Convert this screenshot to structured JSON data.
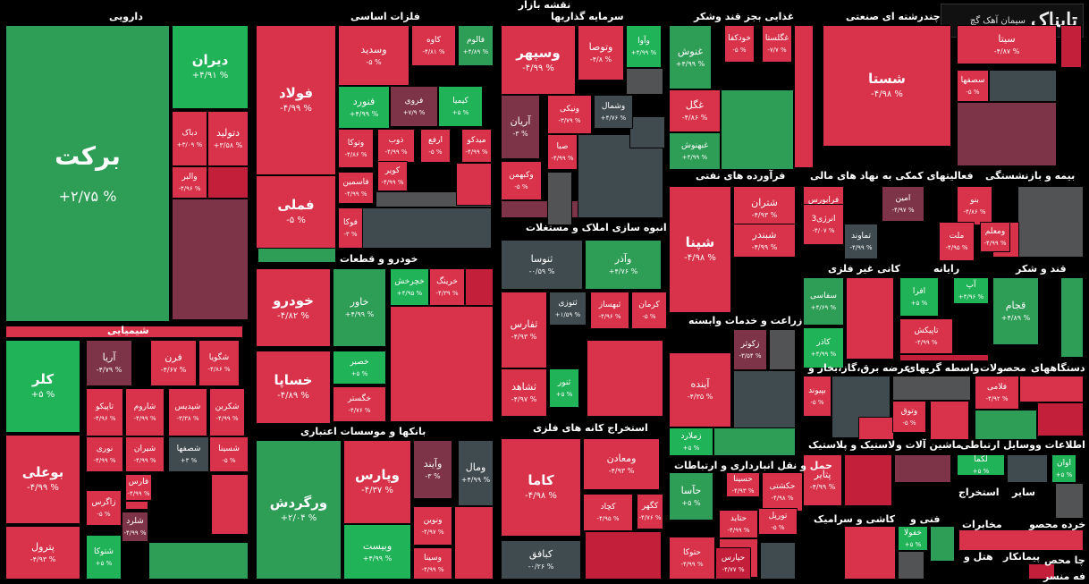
{
  "title": "نقشه بازار",
  "logo": {
    "brand": "تابناک",
    "label": "سیمان آهک گچ"
  },
  "colors": {
    "dg": "#2e9e57",
    "lg": "#21b358",
    "g": "#0fa955",
    "r": "#d8334a",
    "lr": "#e24d61",
    "dr": "#c31f3a",
    "m": "#7d3448",
    "gr": "#3f4b4e",
    "dgr": "#525355"
  },
  "sectors": [
    {
      "label": "دارویی"
    },
    {
      "label": "فلزات اساسی"
    },
    {
      "label": "سرمایه گذاریها"
    },
    {
      "label": "غذایی بجز قند وشکر"
    },
    {
      "label": "چندرشته ای صنعتی"
    },
    {
      "label": "شیمیایی"
    },
    {
      "label": "خودرو و قطعات"
    },
    {
      "label": "انبوه سازی املاک و مستغلات"
    },
    {
      "label": "فرآورده های نفتی"
    },
    {
      "label": "فعالیتهای کمکی به نهاد های مالی"
    },
    {
      "label": "بیمه و بازنشستگی"
    },
    {
      "label": "کانی غیر فلزی"
    },
    {
      "label": "رایانه"
    },
    {
      "label": "قند و شکر"
    },
    {
      "label": "زراعت و خدمات وابسته"
    },
    {
      "label": "بانکها و موسسات اعتباری"
    },
    {
      "label": "استخراج کانه های فلزی"
    },
    {
      "label": "عرضه برق،گاز،بخار و"
    },
    {
      "label": "واسطه گریهای"
    },
    {
      "label": "محصولات"
    },
    {
      "label": "دستگاههای"
    },
    {
      "label": "حمل و نقل انبارداری و ارتباطات"
    },
    {
      "label": "لاستیک و پلاستیک"
    },
    {
      "label": "ماشین آلات و"
    },
    {
      "label": "وسایل ارتباطی"
    },
    {
      "label": "اطلاعات و"
    },
    {
      "label": "کاشی و سرامیک"
    },
    {
      "label": "فنی و"
    },
    {
      "label": "استخراج"
    },
    {
      "label": "سایر"
    },
    {
      "label": "خرده محصو"
    },
    {
      "label": "مخابرات"
    },
    {
      "label": "هتل و"
    },
    {
      "label": "پیمانکار"
    },
    {
      "label": "چا محص"
    },
    {
      "label": "فه منسر"
    }
  ],
  "tiles": [
    {
      "name": "برکت",
      "pct": "+۲/۷۵ %",
      "c": "dg"
    },
    {
      "name": "دیران",
      "pct": "+۴/۹۱ %",
      "c": "lg"
    },
    {
      "name": "دتولید",
      "pct": "+۳/۵۸ %",
      "c": "r"
    },
    {
      "name": "دباک",
      "pct": "+۳/۰۹ %",
      "c": "r"
    },
    {
      "name": "والبر",
      "pct": "-۴/۹۶ %",
      "c": "r"
    },
    {
      "name": "فولاد",
      "pct": "-۴/۹۹ %",
      "c": "r"
    },
    {
      "name": "فملی",
      "pct": "-۵ %",
      "c": "r"
    },
    {
      "name": "وسدید",
      "pct": "-۵ %",
      "c": "r"
    },
    {
      "name": "کاوه",
      "pct": "-۴/۸۱ %",
      "c": "r"
    },
    {
      "name": "فالوم",
      "pct": "+۴/۸۹ %",
      "c": "dg"
    },
    {
      "name": "فنورد",
      "pct": "+۴/۹۹ %",
      "c": "lg"
    },
    {
      "name": "فروی",
      "pct": "+۷/۹ %",
      "c": "m"
    },
    {
      "name": "کیمیا",
      "pct": "+۵ %",
      "c": "lg"
    },
    {
      "name": "وتوکا",
      "pct": "-۴/۸۶ %",
      "c": "r"
    },
    {
      "name": "ذوب",
      "pct": "-۴/۹۹ %",
      "c": "r"
    },
    {
      "name": "ارفع",
      "pct": "-۵ %",
      "c": "r"
    },
    {
      "name": "میدکو",
      "pct": "-۴/۹۹ %",
      "c": "r"
    },
    {
      "name": "فاسمین",
      "pct": "-۴/۹۹ %",
      "c": "r"
    },
    {
      "name": "کویر",
      "pct": "-۴/۹۹ %",
      "c": "r"
    },
    {
      "name": "فوکا",
      "pct": "-۳ %",
      "c": "r"
    },
    {
      "name": "وسپهر",
      "pct": "-۴/۹۹ %",
      "c": "r"
    },
    {
      "name": "وتوصا",
      "pct": "-۴/۸ %",
      "c": "r"
    },
    {
      "name": "وآوا",
      "pct": "+۴/۹۹ %",
      "c": "lg"
    },
    {
      "name": "ونیکی",
      "pct": "-۳/۷۹ %",
      "c": "r"
    },
    {
      "name": "وشمال",
      "pct": "+۴/۷۶ %",
      "c": "gr"
    },
    {
      "name": "آریان",
      "pct": "-۳ %",
      "c": "m"
    },
    {
      "name": "صبا",
      "pct": "-۴/۹۹ %",
      "c": "r"
    },
    {
      "name": "وکبهمن",
      "pct": "-۵ %",
      "c": "r"
    },
    {
      "name": "غنوش",
      "pct": "+۴/۹۹ %",
      "c": "dg"
    },
    {
      "name": "خودکفا",
      "pct": "-۵ %",
      "c": "r"
    },
    {
      "name": "غگلستا",
      "pct": "-۷/۷ %",
      "c": "r"
    },
    {
      "name": "غگل",
      "pct": "-۴/۸۶ %",
      "c": "r"
    },
    {
      "name": "غبهنوش",
      "pct": "+۴/۹۹ %",
      "c": "dg"
    },
    {
      "name": "شستا",
      "pct": "-۴/۹۸ %",
      "c": "r"
    },
    {
      "name": "سیتا",
      "pct": "-۴/۸۷ %",
      "c": "r"
    },
    {
      "name": "سصفها",
      "pct": "-۵ %",
      "c": "r"
    },
    {
      "name": "کلر",
      "pct": "+۵ %",
      "c": "lg"
    },
    {
      "name": "آریا",
      "pct": "-۴/۷۹ %",
      "c": "m"
    },
    {
      "name": "فرن",
      "pct": "-۴/۶۷ %",
      "c": "r"
    },
    {
      "name": "شگویا",
      "pct": "-۴/۸۶ %",
      "c": "r"
    },
    {
      "name": "تاپیکو",
      "pct": "-۴/۹۶ %",
      "c": "r"
    },
    {
      "name": "شاروم",
      "pct": "-۴/۹۹ %",
      "c": "r"
    },
    {
      "name": "شپدیس",
      "pct": "-۳/۳۸ %",
      "c": "r"
    },
    {
      "name": "شکربن",
      "pct": "-۴/۹۹ %",
      "c": "r"
    },
    {
      "name": "بوعلی",
      "pct": "-۴/۹۹ %",
      "c": "r"
    },
    {
      "name": "نوری",
      "pct": "-۴/۹۹ %",
      "c": "r"
    },
    {
      "name": "شیران",
      "pct": "-۴/۹۹ %",
      "c": "r"
    },
    {
      "name": "شصفها",
      "pct": "+۳ %",
      "c": "gr"
    },
    {
      "name": "شسینا",
      "pct": "-۵ %",
      "c": "r"
    },
    {
      "name": "زاگرس",
      "pct": "-۵ %",
      "c": "r"
    },
    {
      "name": "فارس",
      "pct": "-۴/۹۹ %",
      "c": "r"
    },
    {
      "name": "شلرد",
      "pct": "-۴/۹۹ %",
      "c": "m"
    },
    {
      "name": "پترول",
      "pct": "-۴/۹۳ %",
      "c": "r"
    },
    {
      "name": "شتوکا",
      "pct": "+۵ %",
      "c": "lg"
    },
    {
      "name": "خودرو",
      "pct": "-۴/۸۲ %",
      "c": "r"
    },
    {
      "name": "خاور",
      "pct": "+۴/۹۹ %",
      "c": "dg"
    },
    {
      "name": "خچرخش",
      "pct": "+۴/۹۵ %",
      "c": "lg"
    },
    {
      "name": "خرینگ",
      "pct": "-۴/۳۹ %",
      "c": "r"
    },
    {
      "name": "خساپا",
      "pct": "-۴/۸۹ %",
      "c": "r"
    },
    {
      "name": "خصیر",
      "pct": "+۵ %",
      "c": "lg"
    },
    {
      "name": "خگستر",
      "pct": "-۴/۷۶ %",
      "c": "r"
    },
    {
      "name": "ثنوسا",
      "pct": "-۰/۵۹ %",
      "c": "gr"
    },
    {
      "name": "وآذر",
      "pct": "+۴/۷۶ %",
      "c": "dg"
    },
    {
      "name": "ثفارس",
      "pct": "-۴/۹۳ %",
      "c": "r"
    },
    {
      "name": "ثتوزی",
      "pct": "+۱/۵۹ %",
      "c": "gr"
    },
    {
      "name": "ثبهساز",
      "pct": "-۴/۹۶ %",
      "c": "r"
    },
    {
      "name": "کرمان",
      "pct": "-۵ %",
      "c": "r"
    },
    {
      "name": "ثشاهد",
      "pct": "-۴/۹۷ %",
      "c": "r"
    },
    {
      "name": "ثنور",
      "pct": "+۵ %",
      "c": "lg"
    },
    {
      "name": "شپنا",
      "pct": "-۴/۹۸ %",
      "c": "r"
    },
    {
      "name": "شتران",
      "pct": "-۴/۹۳ %",
      "c": "r"
    },
    {
      "name": "شبندر",
      "pct": "-۴/۹۹ %",
      "c": "r"
    },
    {
      "name": "فرابورس",
      "pct": "-۵ %",
      "c": "r"
    },
    {
      "name": "امین",
      "pct": "-۴/۹۷ %",
      "c": "m"
    },
    {
      "name": "انرژی3",
      "pct": "-۴/۰۷ %",
      "c": "r"
    },
    {
      "name": "تماوند",
      "pct": "-۴/۹۹ %",
      "c": "gr"
    },
    {
      "name": "بنو",
      "pct": "-۴/۸۶ %",
      "c": "r"
    },
    {
      "name": "ملت",
      "pct": "-۴/۹۵ %",
      "c": "r"
    },
    {
      "name": "ومعلم",
      "pct": "-۴/۹۹ %",
      "c": "r"
    },
    {
      "name": "سفاسی",
      "pct": "+۴/۶۹ %",
      "c": "dg"
    },
    {
      "name": "کاذر",
      "pct": "+۴/۹۹ %",
      "c": "lg"
    },
    {
      "name": "افرا",
      "pct": "+۵ %",
      "c": "lg"
    },
    {
      "name": "تاپیکش",
      "pct": "-۴/۹۹ %",
      "c": "r"
    },
    {
      "name": "آپ",
      "pct": "+۴/۹۶ %",
      "c": "lg"
    },
    {
      "name": "قجام",
      "pct": "+۴/۸۹ %",
      "c": "dg"
    },
    {
      "name": "زکوثر",
      "pct": "-۳/۵۴ %",
      "c": "m"
    },
    {
      "name": "آینده",
      "pct": "-۴/۳۵ %",
      "c": "r"
    },
    {
      "name": "زملارد",
      "pct": "+۵ %",
      "c": "lg"
    },
    {
      "name": "ورگردش",
      "pct": "+۲/۰۴ %",
      "c": "dg"
    },
    {
      "name": "وپارس",
      "pct": "-۴/۳۷ %",
      "c": "r"
    },
    {
      "name": "وآیند",
      "pct": "-۳ %",
      "c": "m"
    },
    {
      "name": "ومال",
      "pct": "+۴/۹۹ %",
      "c": "gr"
    },
    {
      "name": "وبیست",
      "pct": "+۴/۹۹ %",
      "c": "lg"
    },
    {
      "name": "ونوین",
      "pct": "-۴/۹۷ %",
      "c": "r"
    },
    {
      "name": "وسینا",
      "pct": "-۴/۹۹ %",
      "c": "r"
    },
    {
      "name": "کاما",
      "pct": "-۴/۹۸ %",
      "c": "r"
    },
    {
      "name": "ومعادن",
      "pct": "-۴/۹۳ %",
      "c": "r"
    },
    {
      "name": "کچاد",
      "pct": "-۴/۹۵ %",
      "c": "r"
    },
    {
      "name": "کگهر",
      "pct": "-۴/۷۶ %",
      "c": "r"
    },
    {
      "name": "کبافق",
      "pct": "-۰/۲۶ %",
      "c": "gr"
    },
    {
      "name": "بپیوند",
      "pct": "-۵ %",
      "c": "r"
    },
    {
      "name": "وتوق",
      "pct": "-۵ %",
      "c": "r"
    },
    {
      "name": "فلامی",
      "pct": "-۴/۹۲ %",
      "c": "r"
    },
    {
      "name": "حآسا",
      "pct": "+۵ %",
      "c": "dg"
    },
    {
      "name": "حسینا",
      "pct": "-۴/۹۳ %",
      "c": "r"
    },
    {
      "name": "حکشتی",
      "pct": "-۴/۹۸ %",
      "c": "r"
    },
    {
      "name": "حتاید",
      "pct": "-۴/۹۹ %",
      "c": "r"
    },
    {
      "name": "تورپل",
      "pct": "-۵ %",
      "c": "r"
    },
    {
      "name": "حفارس",
      "pct": "-۴/۹۹ %",
      "c": "r"
    },
    {
      "name": "حتوکا",
      "pct": "-۴/۹۹ %",
      "c": "r"
    },
    {
      "name": "حپارس",
      "pct": "-۴/۷۷ %",
      "c": "dr"
    },
    {
      "name": "پتایر",
      "pct": "-۴/۹۹ %",
      "c": "r"
    },
    {
      "name": "لکما",
      "pct": "+۵ %",
      "c": "lg"
    },
    {
      "name": "اوان",
      "pct": "+۵ %",
      "c": "lg"
    },
    {
      "name": "خفولا",
      "pct": "+۵ %",
      "c": "lg"
    }
  ]
}
